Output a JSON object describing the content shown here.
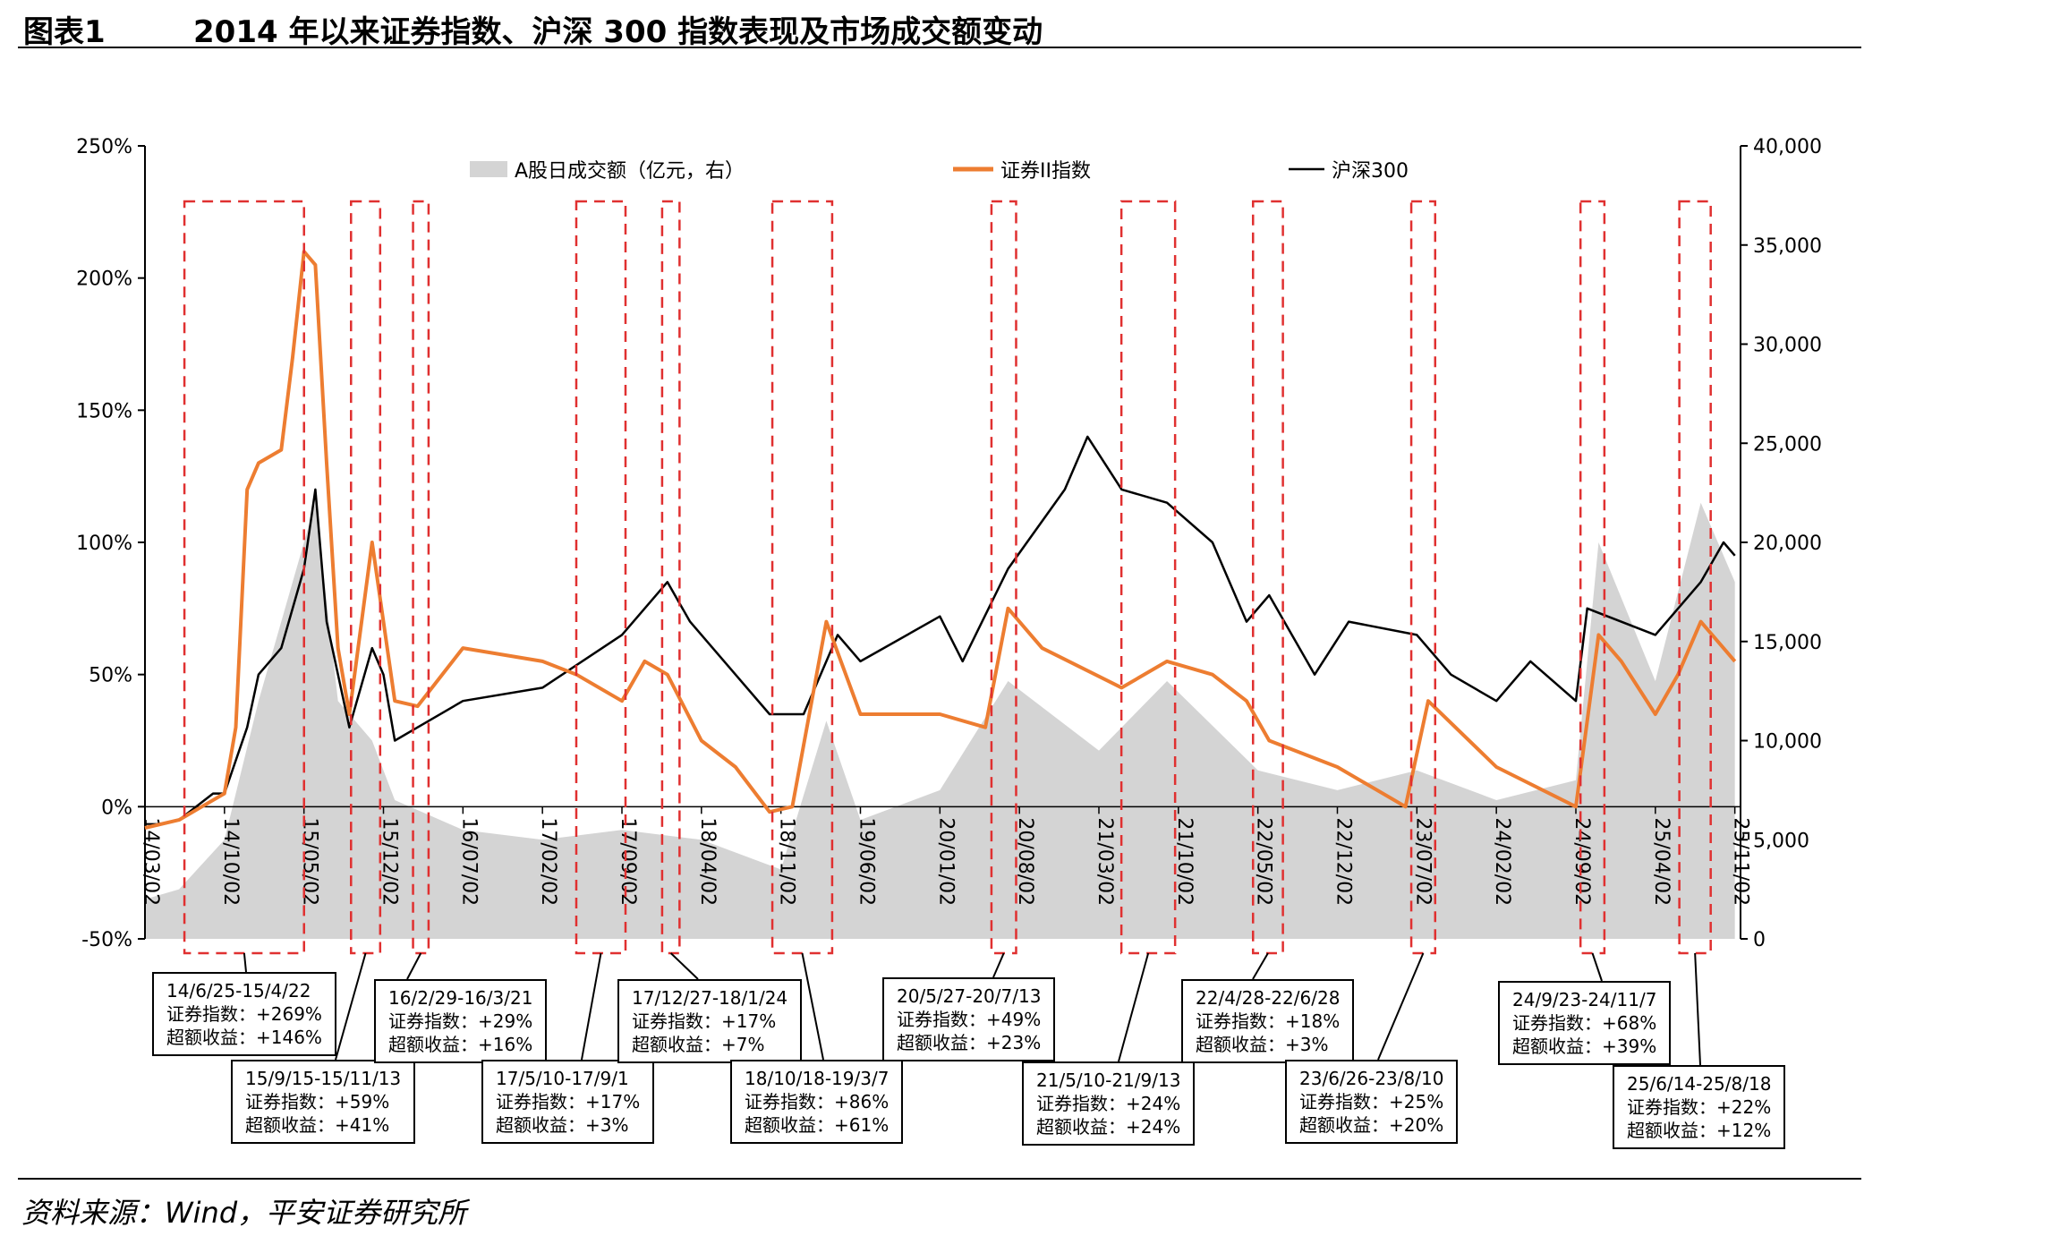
{
  "header": {
    "figure_label": "图表1",
    "title": "2014 年以来证券指数、沪深 300 指数表现及市场成交额变动"
  },
  "footer": {
    "source": "资料来源：Wind，平安证券研究所"
  },
  "colors": {
    "volume": "#d4d4d4",
    "broker": "#ed7d31",
    "hs300": "#000000",
    "window": "#e03030"
  },
  "chart_data": {
    "type": "line",
    "left_axis": {
      "ticks": [
        "250%",
        "200%",
        "150%",
        "100%",
        "50%",
        "0%",
        "-50%"
      ],
      "range": [
        -0.5,
        2.5
      ]
    },
    "right_axis": {
      "ticks": [
        "40,000",
        "35,000",
        "30,000",
        "25,000",
        "20,000",
        "15,000",
        "10,000",
        "5,000",
        "0"
      ],
      "range": [
        0,
        40000
      ]
    },
    "x_ticks": [
      "14/03/02",
      "14/10/02",
      "15/05/02",
      "15/12/02",
      "16/07/02",
      "17/02/02",
      "17/09/02",
      "18/04/02",
      "18/11/02",
      "19/06/02",
      "20/01/02",
      "20/08/02",
      "21/03/02",
      "21/10/02",
      "22/05/02",
      "22/12/02",
      "23/07/02",
      "24/02/02",
      "24/09/02",
      "25/04/02",
      "25/11/02"
    ],
    "legend": [
      "A股日成交额（亿元，右）",
      "证券II指数",
      "沪深300"
    ],
    "series": [
      {
        "name": "A股日成交额（亿元，右）",
        "axis": "right",
        "type": "area",
        "x": [
          "14/03",
          "14/06",
          "14/10",
          "15/01",
          "15/04",
          "15/06",
          "15/08",
          "15/11",
          "16/01",
          "16/07",
          "17/02",
          "17/09",
          "18/04",
          "18/11",
          "19/03",
          "19/06",
          "20/01",
          "20/07",
          "21/03",
          "21/09",
          "22/05",
          "22/12",
          "23/07",
          "24/02",
          "24/09",
          "24/11",
          "25/04",
          "25/08",
          "25/11"
        ],
        "values": [
          2000,
          2500,
          5000,
          12000,
          18000,
          22000,
          12000,
          10000,
          7000,
          5500,
          5000,
          5500,
          5000,
          3500,
          11000,
          6000,
          7500,
          13000,
          9500,
          13000,
          8500,
          7500,
          8500,
          7000,
          8000,
          20000,
          13000,
          22000,
          18000
        ]
      },
      {
        "name": "证券II指数",
        "axis": "left",
        "x": [
          "14/03",
          "14/06",
          "14/08",
          "14/10",
          "14/11",
          "14/12",
          "15/01",
          "15/03",
          "15/04",
          "15/05",
          "15/06",
          "15/07",
          "15/08",
          "15/09",
          "15/11",
          "15/12",
          "16/01",
          "16/03",
          "16/07",
          "17/02",
          "17/05",
          "17/09",
          "17/11",
          "18/01",
          "18/04",
          "18/07",
          "18/10",
          "18/12",
          "19/03",
          "19/06",
          "20/01",
          "20/05",
          "20/07",
          "20/10",
          "21/05",
          "21/09",
          "22/01",
          "22/04",
          "22/06",
          "22/12",
          "23/06",
          "23/08",
          "24/02",
          "24/09",
          "24/11",
          "25/01",
          "25/04",
          "25/06",
          "25/08",
          "25/11"
        ],
        "values": [
          -0.08,
          -0.05,
          0.0,
          0.05,
          0.3,
          1.2,
          1.3,
          1.35,
          1.7,
          2.1,
          2.05,
          1.3,
          0.6,
          0.35,
          1.0,
          0.7,
          0.4,
          0.38,
          0.6,
          0.55,
          0.5,
          0.4,
          0.55,
          0.5,
          0.25,
          0.15,
          -0.02,
          0.0,
          0.7,
          0.35,
          0.35,
          0.3,
          0.75,
          0.6,
          0.45,
          0.55,
          0.5,
          0.4,
          0.25,
          0.15,
          0.0,
          0.4,
          0.15,
          0.0,
          0.65,
          0.55,
          0.35,
          0.5,
          0.7,
          0.55
        ]
      },
      {
        "name": "沪深300",
        "axis": "left",
        "x": [
          "14/03",
          "14/06",
          "14/09",
          "14/10",
          "14/12",
          "15/01",
          "15/03",
          "15/05",
          "15/06",
          "15/07",
          "15/08",
          "15/09",
          "15/11",
          "15/12",
          "16/01",
          "16/03",
          "16/07",
          "17/02",
          "17/09",
          "18/01",
          "18/03",
          "18/07",
          "18/10",
          "19/01",
          "19/04",
          "19/06",
          "20/01",
          "20/03",
          "20/07",
          "20/12",
          "21/02",
          "21/05",
          "21/09",
          "22/01",
          "22/04",
          "22/06",
          "22/10",
          "23/01",
          "23/07",
          "23/10",
          "24/02",
          "24/05",
          "24/09",
          "24/10",
          "25/04",
          "25/08",
          "25/10",
          "25/11"
        ],
        "values": [
          -0.08,
          -0.05,
          0.05,
          0.05,
          0.3,
          0.5,
          0.6,
          0.9,
          1.2,
          0.7,
          0.5,
          0.3,
          0.6,
          0.5,
          0.25,
          0.3,
          0.4,
          0.45,
          0.65,
          0.85,
          0.7,
          0.5,
          0.35,
          0.35,
          0.65,
          0.55,
          0.72,
          0.55,
          0.9,
          1.2,
          1.4,
          1.2,
          1.15,
          1.0,
          0.7,
          0.8,
          0.5,
          0.7,
          0.65,
          0.5,
          0.4,
          0.55,
          0.4,
          0.75,
          0.65,
          0.85,
          1.0,
          0.95
        ]
      }
    ],
    "windows": [
      {
        "start": "14/6/25",
        "end": "15/4/22",
        "label": "14/6/25-15/4/22",
        "broker": "证券指数：+269%",
        "excess": "超额收益：+146%"
      },
      {
        "start": "15/9/15",
        "end": "15/11/13",
        "label": "15/9/15-15/11/13",
        "broker": "证券指数：+59%",
        "excess": "超额收益：+41%"
      },
      {
        "start": "16/2/29",
        "end": "16/3/21",
        "label": "16/2/29-16/3/21",
        "broker": "证券指数：+29%",
        "excess": "超额收益：+16%"
      },
      {
        "start": "17/5/10",
        "end": "17/9/1",
        "label": "17/5/10-17/9/1",
        "broker": "证券指数：+17%",
        "excess": "超额收益：+3%"
      },
      {
        "start": "17/12/27",
        "end": "18/1/24",
        "label": "17/12/27-18/1/24",
        "broker": "证券指数：+17%",
        "excess": "超额收益：+7%"
      },
      {
        "start": "18/10/18",
        "end": "19/3/7",
        "label": "18/10/18-19/3/7",
        "broker": "证券指数：+86%",
        "excess": "超额收益：+61%"
      },
      {
        "start": "20/5/27",
        "end": "20/7/13",
        "label": "20/5/27-20/7/13",
        "broker": "证券指数：+49%",
        "excess": "超额收益：+23%"
      },
      {
        "start": "21/5/10",
        "end": "21/9/13",
        "label": "21/5/10-21/9/13",
        "broker": "证券指数：+24%",
        "excess": "超额收益：+24%"
      },
      {
        "start": "22/4/28",
        "end": "22/6/28",
        "label": "22/4/28-22/6/28",
        "broker": "证券指数：+18%",
        "excess": "超额收益：+3%"
      },
      {
        "start": "23/6/26",
        "end": "23/8/10",
        "label": "23/6/26-23/8/10",
        "broker": "证券指数：+25%",
        "excess": "超额收益：+20%"
      },
      {
        "start": "24/9/23",
        "end": "24/11/7",
        "label": "24/9/23-24/11/7",
        "broker": "证券指数：+68%",
        "excess": "超额收益：+39%"
      },
      {
        "start": "25/6/14",
        "end": "25/8/18",
        "label": "25/6/14-25/8/18",
        "broker": "证券指数：+22%",
        "excess": "超额收益：+12%"
      }
    ]
  }
}
